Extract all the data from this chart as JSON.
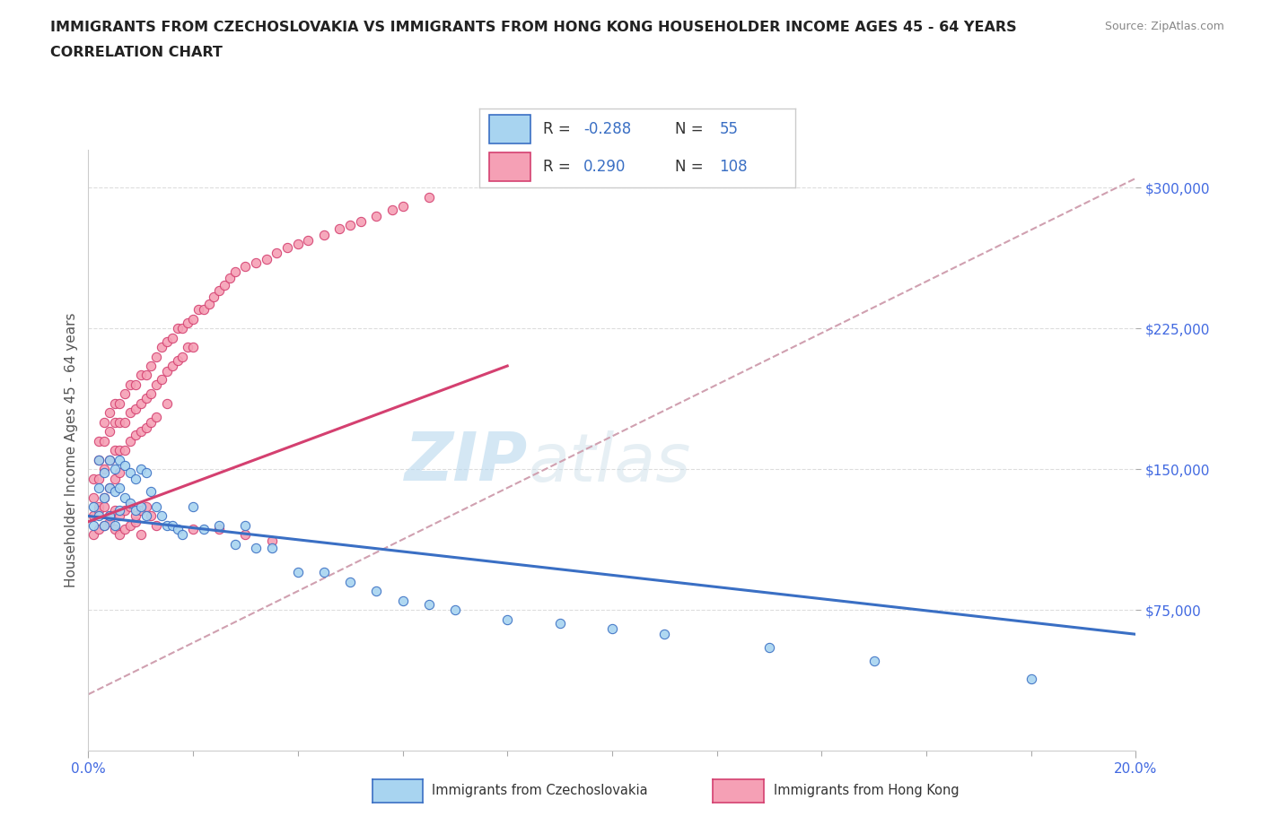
{
  "title1": "IMMIGRANTS FROM CZECHOSLOVAKIA VS IMMIGRANTS FROM HONG KONG HOUSEHOLDER INCOME AGES 45 - 64 YEARS",
  "title2": "CORRELATION CHART",
  "source_text": "Source: ZipAtlas.com",
  "ylabel": "Householder Income Ages 45 - 64 years",
  "xlim": [
    0.0,
    0.2
  ],
  "ylim": [
    0,
    320000
  ],
  "watermark_zip": "ZIP",
  "watermark_atlas": "atlas",
  "color_czech": "#a8d4f0",
  "color_hk": "#f5a0b5",
  "color_czech_line": "#3a6fc4",
  "color_hk_line": "#d44070",
  "color_dashed": "#d0a0b0",
  "ytick_labels": [
    "$75,000",
    "$150,000",
    "$225,000",
    "$300,000"
  ],
  "ytick_values": [
    75000,
    150000,
    225000,
    300000
  ],
  "czech_trend": [
    0.0,
    125000,
    0.2,
    62000
  ],
  "hk_trend": [
    0.0,
    122000,
    0.08,
    205000
  ],
  "gray_dashed": [
    0.0,
    30000,
    0.2,
    305000
  ],
  "czech_x": [
    0.001,
    0.001,
    0.002,
    0.002,
    0.002,
    0.003,
    0.003,
    0.003,
    0.004,
    0.004,
    0.004,
    0.005,
    0.005,
    0.005,
    0.006,
    0.006,
    0.006,
    0.007,
    0.007,
    0.008,
    0.008,
    0.009,
    0.009,
    0.01,
    0.01,
    0.011,
    0.011,
    0.012,
    0.013,
    0.014,
    0.015,
    0.016,
    0.017,
    0.018,
    0.02,
    0.022,
    0.025,
    0.028,
    0.03,
    0.032,
    0.035,
    0.04,
    0.045,
    0.05,
    0.055,
    0.06,
    0.065,
    0.07,
    0.08,
    0.09,
    0.1,
    0.11,
    0.13,
    0.15,
    0.18
  ],
  "czech_y": [
    130000,
    120000,
    155000,
    140000,
    125000,
    148000,
    135000,
    120000,
    155000,
    140000,
    125000,
    150000,
    138000,
    120000,
    155000,
    140000,
    128000,
    152000,
    135000,
    148000,
    132000,
    145000,
    128000,
    150000,
    130000,
    148000,
    125000,
    138000,
    130000,
    125000,
    120000,
    120000,
    118000,
    115000,
    130000,
    118000,
    120000,
    110000,
    120000,
    108000,
    108000,
    95000,
    95000,
    90000,
    85000,
    80000,
    78000,
    75000,
    70000,
    68000,
    65000,
    62000,
    55000,
    48000,
    38000
  ],
  "hk_x": [
    0.001,
    0.001,
    0.001,
    0.002,
    0.002,
    0.002,
    0.002,
    0.003,
    0.003,
    0.003,
    0.003,
    0.004,
    0.004,
    0.004,
    0.004,
    0.005,
    0.005,
    0.005,
    0.005,
    0.006,
    0.006,
    0.006,
    0.006,
    0.007,
    0.007,
    0.007,
    0.008,
    0.008,
    0.008,
    0.009,
    0.009,
    0.009,
    0.01,
    0.01,
    0.01,
    0.011,
    0.011,
    0.011,
    0.012,
    0.012,
    0.012,
    0.013,
    0.013,
    0.013,
    0.014,
    0.014,
    0.015,
    0.015,
    0.015,
    0.016,
    0.016,
    0.017,
    0.017,
    0.018,
    0.018,
    0.019,
    0.019,
    0.02,
    0.02,
    0.021,
    0.022,
    0.023,
    0.024,
    0.025,
    0.026,
    0.027,
    0.028,
    0.03,
    0.032,
    0.034,
    0.036,
    0.038,
    0.04,
    0.042,
    0.045,
    0.048,
    0.05,
    0.052,
    0.055,
    0.058,
    0.06,
    0.065,
    0.001,
    0.002,
    0.003,
    0.004,
    0.005,
    0.006,
    0.007,
    0.008,
    0.009,
    0.01,
    0.002,
    0.003,
    0.004,
    0.005,
    0.006,
    0.007,
    0.008,
    0.009,
    0.01,
    0.011,
    0.012,
    0.013,
    0.02,
    0.025,
    0.03,
    0.035
  ],
  "hk_y": [
    145000,
    135000,
    125000,
    165000,
    155000,
    145000,
    130000,
    175000,
    165000,
    150000,
    135000,
    180000,
    170000,
    155000,
    140000,
    185000,
    175000,
    160000,
    145000,
    185000,
    175000,
    160000,
    148000,
    190000,
    175000,
    160000,
    195000,
    180000,
    165000,
    195000,
    182000,
    168000,
    200000,
    185000,
    170000,
    200000,
    188000,
    172000,
    205000,
    190000,
    175000,
    210000,
    195000,
    178000,
    215000,
    198000,
    218000,
    202000,
    185000,
    220000,
    205000,
    225000,
    208000,
    225000,
    210000,
    228000,
    215000,
    230000,
    215000,
    235000,
    235000,
    238000,
    242000,
    245000,
    248000,
    252000,
    255000,
    258000,
    260000,
    262000,
    265000,
    268000,
    270000,
    272000,
    275000,
    278000,
    280000,
    282000,
    285000,
    288000,
    290000,
    295000,
    115000,
    118000,
    120000,
    122000,
    118000,
    115000,
    118000,
    120000,
    122000,
    115000,
    128000,
    130000,
    125000,
    128000,
    125000,
    128000,
    130000,
    125000,
    128000,
    130000,
    125000,
    120000,
    118000,
    118000,
    115000,
    112000
  ],
  "background_color": "#ffffff"
}
